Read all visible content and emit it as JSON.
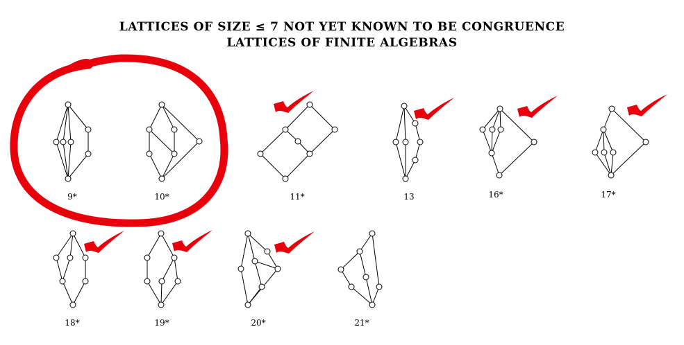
{
  "title": {
    "line1": "LATTICES OF SIZE ≤ 7 NOT YET KNOWN TO BE CONGRUENCE",
    "line2": "LATTICES OF FINITE ALGEBRAS"
  },
  "marks": {
    "circle_color": "#e8000b",
    "check_color": "#e8000b"
  },
  "lattices": [
    {
      "label": "9*",
      "circled": true,
      "checked": false
    },
    {
      "label": "10*",
      "circled": true,
      "checked": false
    },
    {
      "label": "11*",
      "circled": false,
      "checked": true
    },
    {
      "label": "13",
      "circled": false,
      "checked": true
    },
    {
      "label": "16*",
      "circled": false,
      "checked": true
    },
    {
      "label": "17*",
      "circled": false,
      "checked": true
    },
    {
      "label": "18*",
      "circled": false,
      "checked": true
    },
    {
      "label": "19*",
      "circled": false,
      "checked": true
    },
    {
      "label": "20*",
      "circled": false,
      "checked": true
    },
    {
      "label": "21*",
      "circled": false,
      "checked": false
    }
  ]
}
